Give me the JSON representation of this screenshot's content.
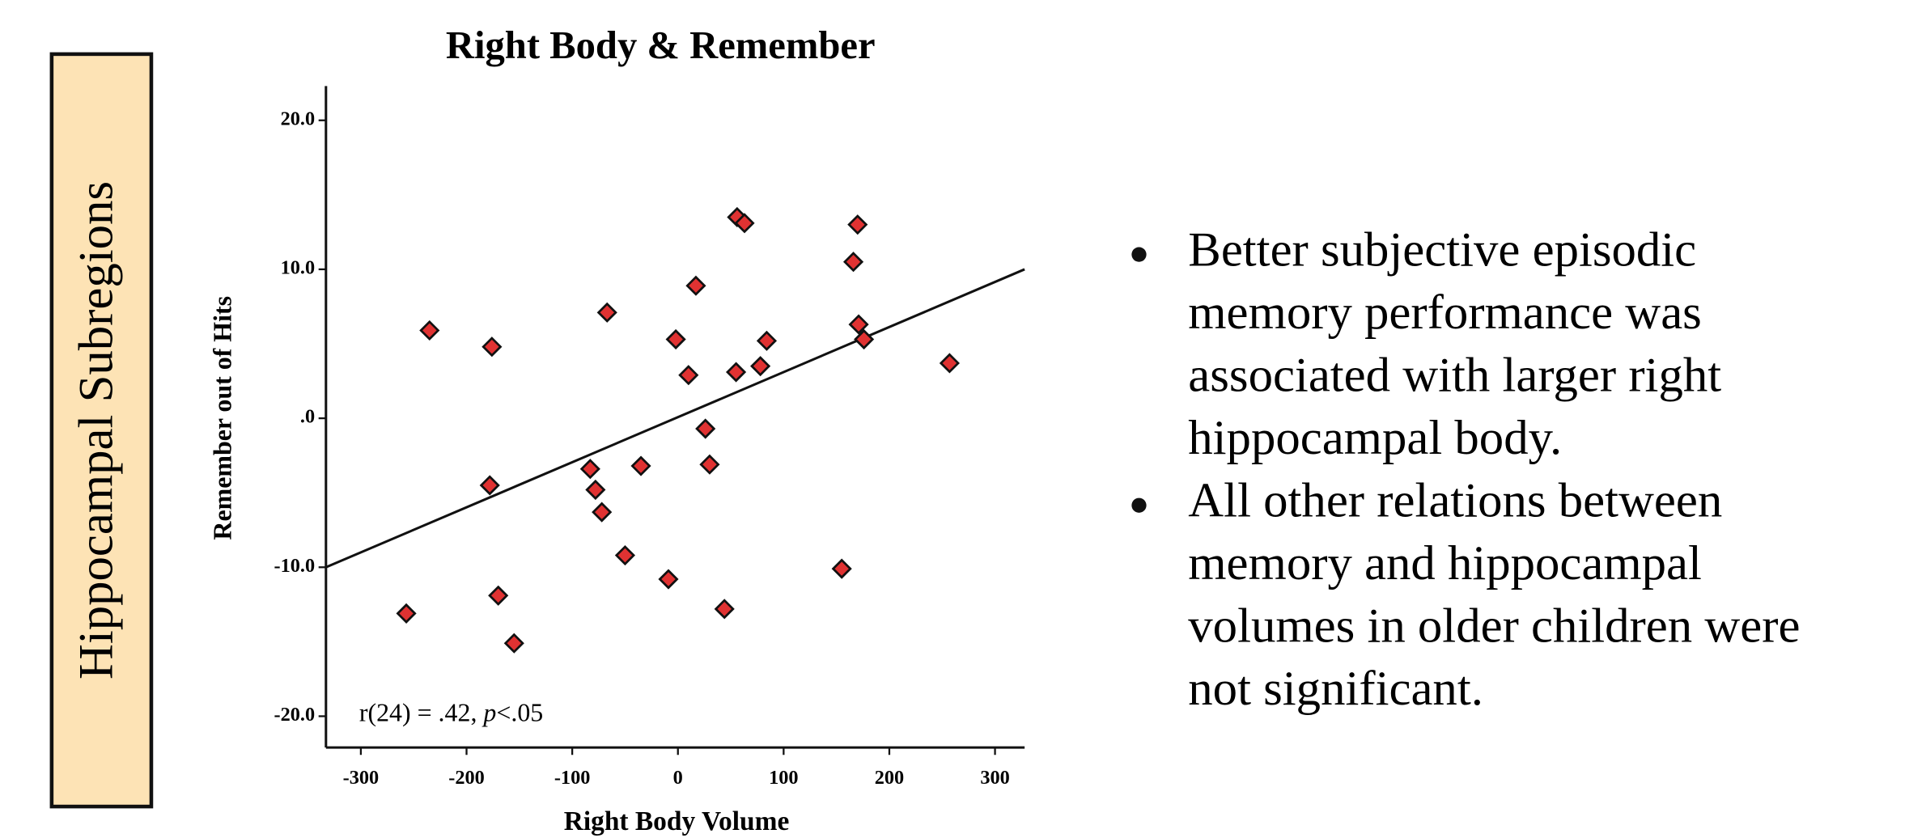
{
  "sidebar_label": "Hippocampal Subregions",
  "bullets": [
    [
      "Better subjective episodic",
      "memory performance was",
      "associated with larger right",
      "hippocampal body."
    ],
    [
      "All other relations between",
      "memory and hippocampal",
      "volumes in older children were",
      "not significant."
    ]
  ],
  "chart_data": {
    "type": "scatter",
    "title": "Right Body & Remember",
    "x_label": "Right Body Volume",
    "y_label": "Remember out of Hits",
    "annotation": [
      "r(24) = .42, ",
      "p",
      "<.05"
    ],
    "color": "#e03232",
    "x": [
      -257,
      -235,
      -176,
      -178,
      -170,
      -155,
      -67,
      -83,
      -78,
      -72,
      -50,
      -35,
      -9,
      -2,
      10,
      17,
      26,
      30,
      44,
      55,
      56,
      63,
      78,
      84,
      155,
      166,
      170,
      171,
      176,
      257
    ],
    "values": [
      -13.1,
      5.9,
      4.8,
      -4.5,
      -11.9,
      -15.1,
      7.1,
      -3.4,
      -4.8,
      -6.3,
      -9.2,
      -3.2,
      -10.8,
      5.3,
      2.9,
      8.9,
      -0.7,
      -3.1,
      -12.8,
      3.1,
      13.5,
      13.1,
      3.5,
      5.2,
      -10.1,
      10.5,
      13.0,
      6.3,
      5.3,
      3.7
    ],
    "fit_line": {
      "x": [
        -333,
        328
      ],
      "y": [
        -10,
        10
      ]
    },
    "xlim": [
      -333,
      328
    ],
    "ylim": [
      -22.1,
      22.3
    ],
    "xticks": [
      -300,
      -200,
      -100,
      0,
      100,
      200,
      300
    ],
    "yticks": [
      {
        "value": 20,
        "label": "20.0"
      },
      {
        "value": 10,
        "label": "10.0"
      },
      {
        "value": 0,
        "label": ".0"
      },
      {
        "value": -10,
        "label": "-10.0"
      },
      {
        "value": -20,
        "label": "-20.0"
      }
    ]
  }
}
